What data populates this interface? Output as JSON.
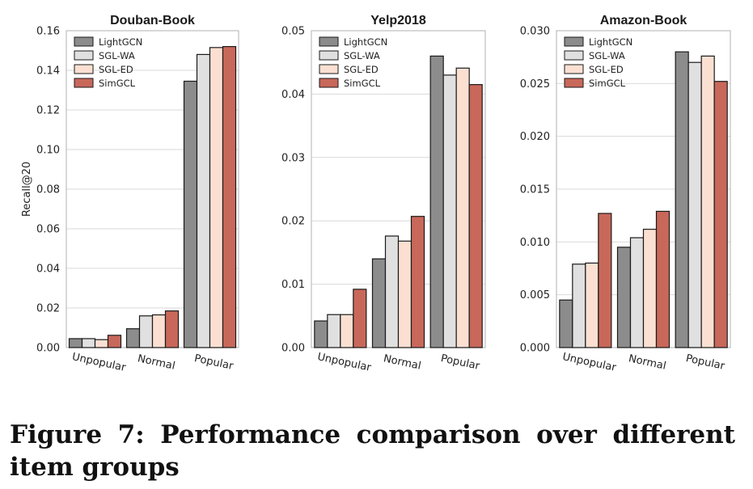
{
  "colors": {
    "LightGCN": "#8c8c8c",
    "SGL-WA": "#e0e0e0",
    "SGL-ED": "#fbe0d2",
    "SimGCL": "#c8685a",
    "grid": "#d9d9d9",
    "axis": "#bfbfbf"
  },
  "caption": "Figure 7: Performance comparison over different item groups",
  "chart_data": [
    {
      "type": "bar",
      "title": "Douban-Book",
      "ylabel": "Recall@20",
      "xlabel": "",
      "categories": [
        "Unpopular",
        "Normal",
        "Popular"
      ],
      "ylim": [
        0,
        0.16
      ],
      "yticks": [
        0.0,
        0.02,
        0.04,
        0.06,
        0.08,
        0.1,
        0.12,
        0.14,
        0.16
      ],
      "ytick_labels": [
        "0.00",
        "0.02",
        "0.04",
        "0.06",
        "0.08",
        "0.10",
        "0.12",
        "0.14",
        "0.16"
      ],
      "grid": true,
      "legend": "top-left",
      "series": [
        {
          "name": "LightGCN",
          "values": [
            0.0045,
            0.0095,
            0.1345
          ]
        },
        {
          "name": "SGL-WA",
          "values": [
            0.0045,
            0.016,
            0.148
          ]
        },
        {
          "name": "SGL-ED",
          "values": [
            0.004,
            0.0165,
            0.1515
          ]
        },
        {
          "name": "SimGCL",
          "values": [
            0.0062,
            0.0185,
            0.152
          ]
        }
      ]
    },
    {
      "type": "bar",
      "title": "Yelp2018",
      "ylabel": "",
      "xlabel": "",
      "categories": [
        "Unpopular",
        "Normal",
        "Popular"
      ],
      "ylim": [
        0,
        0.05
      ],
      "yticks": [
        0.0,
        0.01,
        0.02,
        0.03,
        0.04,
        0.05
      ],
      "ytick_labels": [
        "0.00",
        "0.01",
        "0.02",
        "0.03",
        "0.04",
        "0.05"
      ],
      "grid": true,
      "legend": "top-left",
      "series": [
        {
          "name": "LightGCN",
          "values": [
            0.0042,
            0.014,
            0.046
          ]
        },
        {
          "name": "SGL-WA",
          "values": [
            0.0052,
            0.0176,
            0.043
          ]
        },
        {
          "name": "SGL-ED",
          "values": [
            0.0052,
            0.0168,
            0.0441
          ]
        },
        {
          "name": "SimGCL",
          "values": [
            0.0092,
            0.0207,
            0.0415
          ]
        }
      ]
    },
    {
      "type": "bar",
      "title": "Amazon-Book",
      "ylabel": "",
      "xlabel": "",
      "categories": [
        "Unpopular",
        "Normal",
        "Popular"
      ],
      "ylim": [
        0,
        0.03
      ],
      "yticks": [
        0.0,
        0.005,
        0.01,
        0.015,
        0.02,
        0.025,
        0.03
      ],
      "ytick_labels": [
        "0.000",
        "0.005",
        "0.010",
        "0.015",
        "0.020",
        "0.025",
        "0.030"
      ],
      "grid": true,
      "legend": "top-left",
      "series": [
        {
          "name": "LightGCN",
          "values": [
            0.0045,
            0.0095,
            0.028
          ]
        },
        {
          "name": "SGL-WA",
          "values": [
            0.0079,
            0.0104,
            0.027
          ]
        },
        {
          "name": "SGL-ED",
          "values": [
            0.008,
            0.0112,
            0.0276
          ]
        },
        {
          "name": "SimGCL",
          "values": [
            0.0127,
            0.0129,
            0.0252
          ]
        }
      ]
    }
  ]
}
